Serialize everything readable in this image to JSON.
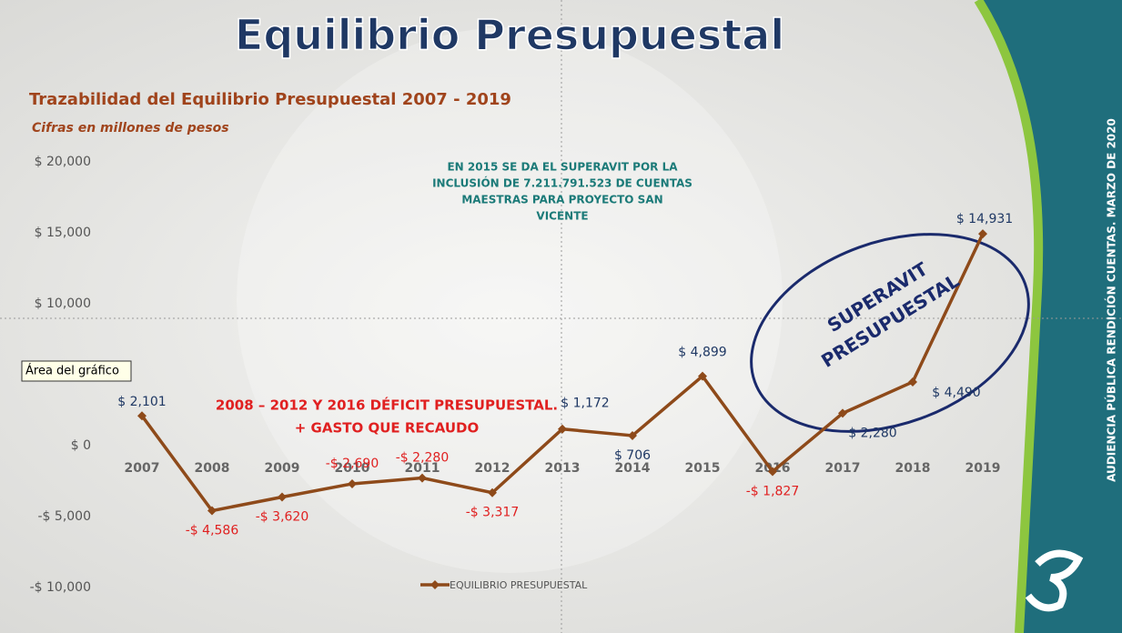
{
  "header": {
    "title": "Equilibrio Presupuestal",
    "side_text": "AUDIENCIA PÚBLICA RENDICIÓN CUENTAS. MARZO DE 2020",
    "tooltip": "Área del gráfico"
  },
  "chart_data": {
    "type": "line",
    "title": "Trazabilidad del Equilibrio Presupuestal 2007 - 2019",
    "subtitle": "Cifras en millones de pesos",
    "categories": [
      "2007",
      "2008",
      "2009",
      "2010",
      "2011",
      "2012",
      "2013",
      "2014",
      "2015",
      "2016",
      "2017",
      "2018",
      "2019"
    ],
    "series": [
      {
        "name": "EQUILIBRIO PRESUPUESTAL",
        "color": "#8e4a1a",
        "values": [
          2101,
          -4586,
          -3620,
          -2690,
          -2280,
          -3317,
          1172,
          706,
          4899,
          -1827,
          2280,
          4490,
          14931
        ],
        "value_labels": [
          "$ 2,101",
          "-$ 4,586",
          "-$ 3,620",
          "-$ 2,690",
          "-$ 2,280",
          "-$ 3,317",
          "$ 1,172",
          "$ 706",
          "$ 4,899",
          "-$ 1,827",
          "$ 2,280",
          "$ 4,490",
          "$ 14,931"
        ]
      }
    ],
    "ylim": [
      -10000,
      20000
    ],
    "yticks": [
      {
        "value": -10000,
        "label": "-$ 10,000"
      },
      {
        "value": -5000,
        "label": "-$ 5,000"
      },
      {
        "value": 0,
        "label": "$ 0"
      },
      {
        "value": 10000,
        "label": "$ 10,000"
      },
      {
        "value": 15000,
        "label": "$ 15,000"
      },
      {
        "value": 20000,
        "label": "$ 20,000"
      }
    ],
    "annotations": {
      "note_2015": [
        "EN 2015 SE DA EL SUPERAVIT POR LA",
        "INCLUSIÓN DE 7.211.791.523 DE CUENTAS",
        "MAESTRAS PARA PROYECTO SAN",
        "VICENTE"
      ],
      "deficit": [
        "2008 – 2012 Y 2016 DÉFICIT PRESUPUESTAL.",
        "+ GASTO QUE RECAUDO"
      ],
      "superavit": [
        "SUPERAVIT",
        "PRESUPUESTAL"
      ]
    },
    "positive_label_color": "#1f3864",
    "negative_label_color": "#e02020"
  }
}
